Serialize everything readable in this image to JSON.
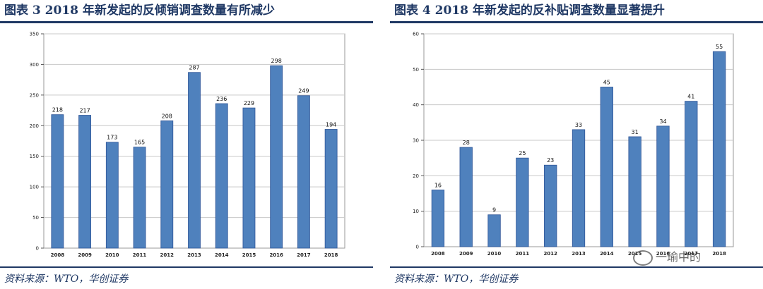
{
  "figures": [
    {
      "title": "图表 3   2018 年新发起的反倾销调查数量有所减少",
      "source": "资料来源：WTO，华创证券"
    },
    {
      "title": "图表 4   2018 年新发起的反补贴调查数量显著提升",
      "source": "资料来源：WTO，华创证券"
    }
  ],
  "watermark": {
    "text": "一瑜中的"
  },
  "colors": {
    "bar": "#4f81bd",
    "bar_edge": "#2f5597",
    "accent": "#1f3864"
  },
  "chart_data": [
    {
      "type": "bar",
      "categories": [
        "2008",
        "2009",
        "2010",
        "2011",
        "2012",
        "2013",
        "2014",
        "2015",
        "2016",
        "2017",
        "2018"
      ],
      "values": [
        218,
        217,
        173,
        165,
        208,
        287,
        236,
        229,
        298,
        249,
        194
      ],
      "ylim": [
        0,
        350
      ],
      "yticks": [
        0,
        50,
        100,
        150,
        200,
        250,
        300,
        350
      ],
      "grid": true,
      "data_labels": true
    },
    {
      "type": "bar",
      "categories": [
        "2008",
        "2009",
        "2010",
        "2011",
        "2012",
        "2013",
        "2014",
        "2015",
        "2016",
        "2017",
        "2018"
      ],
      "values": [
        16,
        28,
        9,
        25,
        23,
        33,
        45,
        31,
        34,
        41,
        55
      ],
      "ylim": [
        0,
        60
      ],
      "yticks": [
        0,
        10,
        20,
        30,
        40,
        50,
        60
      ],
      "grid": true,
      "data_labels": true
    }
  ]
}
